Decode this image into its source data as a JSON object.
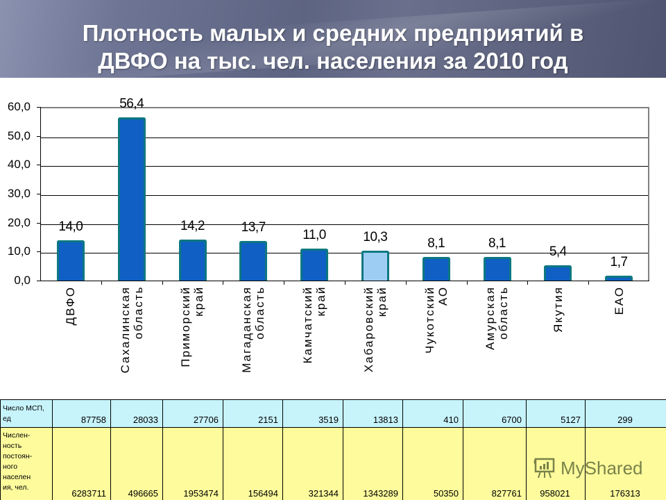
{
  "header": {
    "title_line1": "Плотность малых и средних предприятий в",
    "title_line2": "ДВФО на тыс. чел. населения за 2010 год"
  },
  "chart_data": {
    "type": "bar",
    "title": "Плотность малых и средних предприятий в ДВФО на тыс. чел. населения за 2010 год",
    "xlabel": "",
    "ylabel": "",
    "ylim": [
      0,
      60
    ],
    "yticks": [
      "0,0",
      "10,0",
      "20,0",
      "30,0",
      "40,0",
      "50,0",
      "60,0"
    ],
    "grid": true,
    "legend": null,
    "categories": [
      "ДВФО",
      "Сахалинская область",
      "Приморский край",
      "Магаданская область",
      "Камчатский край",
      "Хабаровский край",
      "Чукотский АО",
      "Амурская область",
      "Якутия",
      "ЕАО"
    ],
    "category_lines": [
      "ДВФО",
      "Сахалинская\nобласть",
      "Приморский\nкрай",
      "Магаданская\nобласть",
      "Камчатский\nкрай",
      "Хабаровский\nкрай",
      "Чукотский\nАО",
      "Амурская\nобласть",
      "Якутия",
      "ЕАО"
    ],
    "values": [
      14.0,
      56.4,
      14.2,
      13.7,
      11.0,
      10.3,
      8.1,
      8.1,
      5.4,
      1.7
    ],
    "value_labels": [
      "14,0",
      "56,4",
      "14,2",
      "13,7",
      "11,0",
      "10,3",
      "8,1",
      "8,1",
      "5,4",
      "1,7"
    ],
    "highlight_index": 5,
    "colors": {
      "bar": "#0f5fc4",
      "bar_border": "#0d7880",
      "highlight": "#9ecdf4"
    }
  },
  "table": {
    "rows": [
      {
        "label": "Число МСП, ед",
        "values": [
          "87758",
          "28033",
          "27706",
          "2151",
          "3519",
          "13813",
          "410",
          "6700",
          "5127",
          "299"
        ]
      },
      {
        "label": "Числен-ность постоян-ного населен ия, чел.",
        "label_lines": [
          "Числен-",
          "ность",
          "постоян-",
          "ного",
          "населен",
          "ия, чел."
        ],
        "values": [
          "6283711",
          "496665",
          "1953474",
          "156494",
          "321344",
          "1343289",
          "50350",
          "827761",
          "958021",
          "176313"
        ]
      }
    ]
  },
  "watermark": {
    "text": "MyShared"
  }
}
